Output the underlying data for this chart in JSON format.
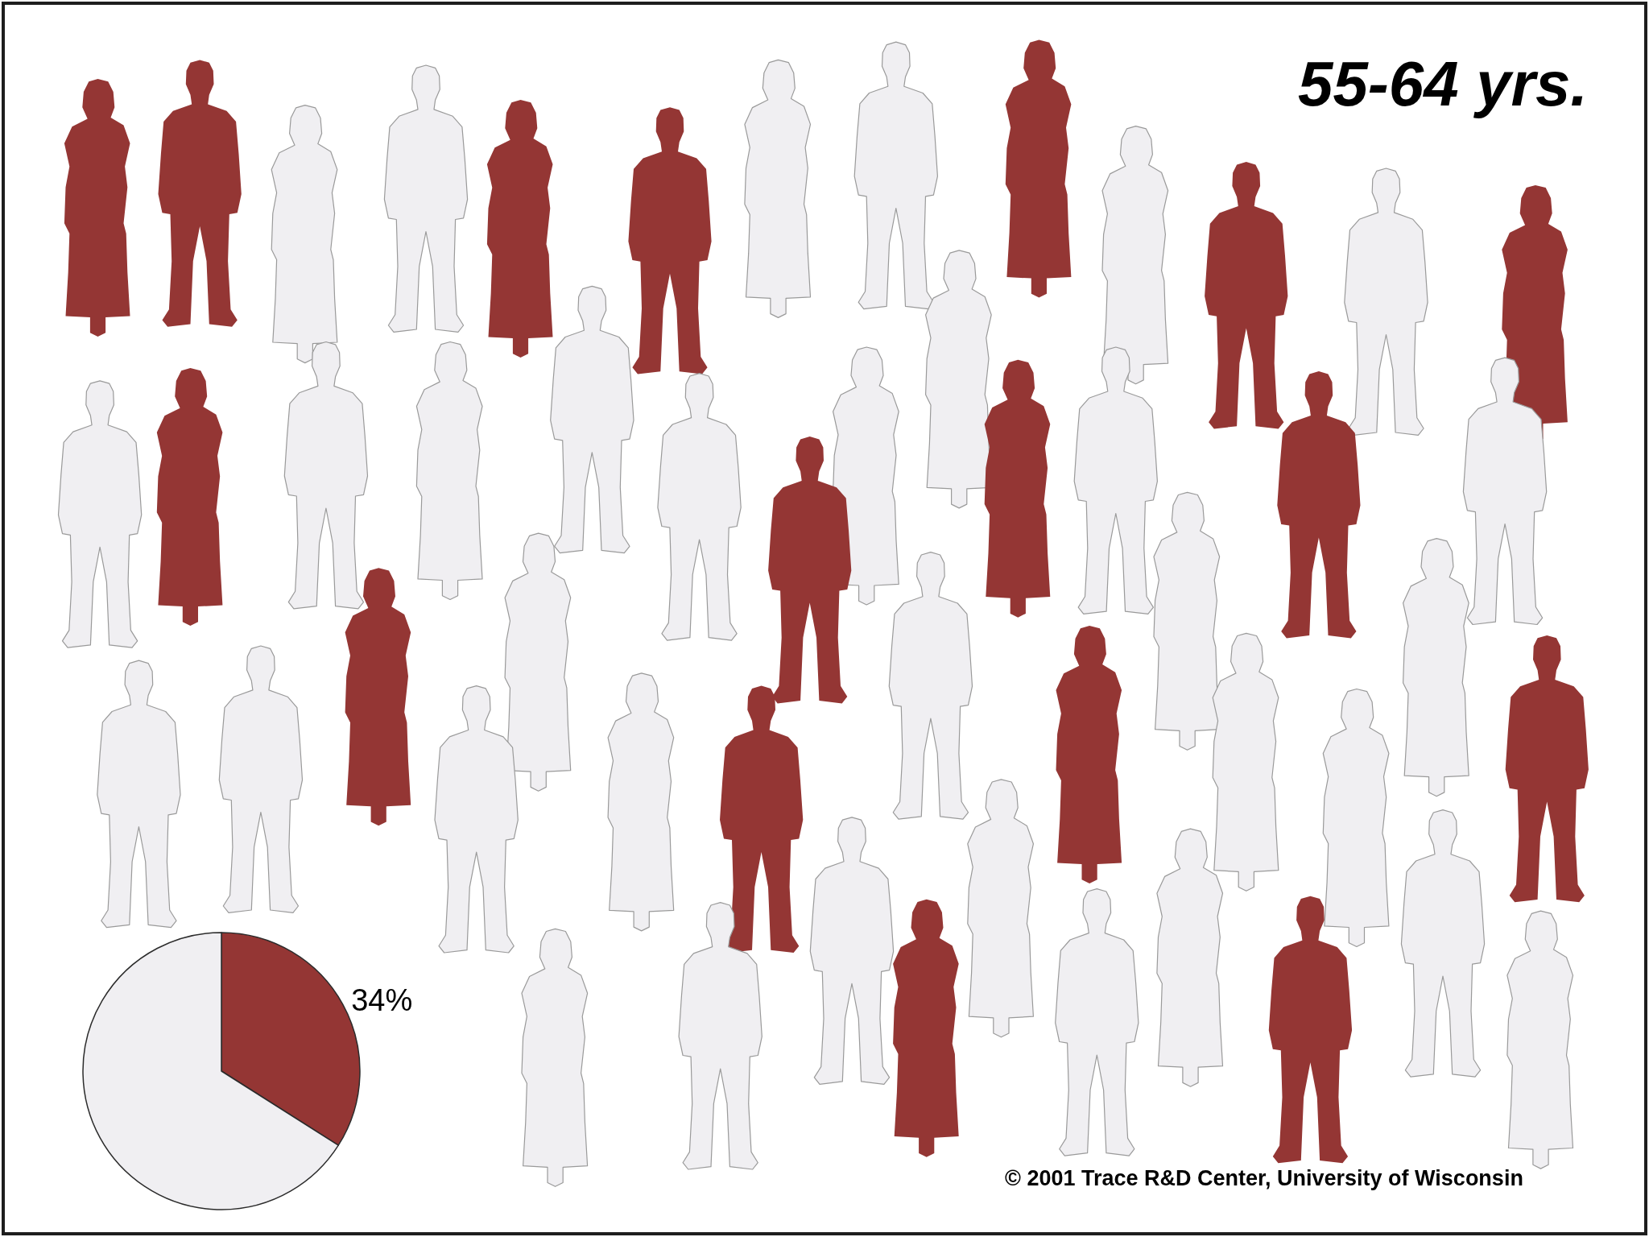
{
  "chart_data": {
    "type": "pie",
    "title": "55-64 yrs.",
    "categories": [
      null,
      null
    ],
    "values": [
      34,
      66
    ],
    "colors": [
      "#943634",
      "#f0eff2"
    ],
    "value_labels": [
      "34%",
      null
    ],
    "annotations": [
      "© 2001 Trace R&D Center, University of Wisconsin"
    ]
  }
}
